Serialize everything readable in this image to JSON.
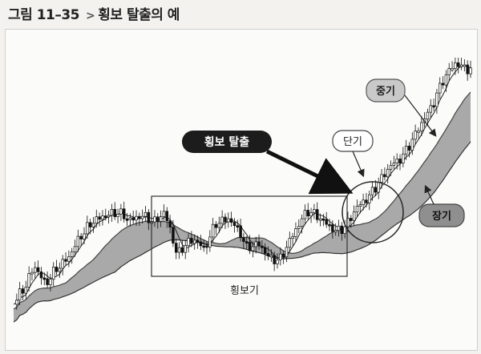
{
  "figure": {
    "number": "그림 11–35",
    "separator": ">",
    "title": "횡보 탈출의 예"
  },
  "chart_data": {
    "type": "line",
    "title": "",
    "xlabel": "",
    "ylabel": "",
    "grid": false,
    "note": "Stylised candlestick price chart with short, medium and long moving averages; price ranges sideways then breaks out upward.",
    "annotations": {
      "breakout": "횡보 탈출",
      "short_ma": "단기",
      "medium_ma": "중기",
      "long_ma": "장기",
      "sideways_box": "횡보기"
    }
  }
}
